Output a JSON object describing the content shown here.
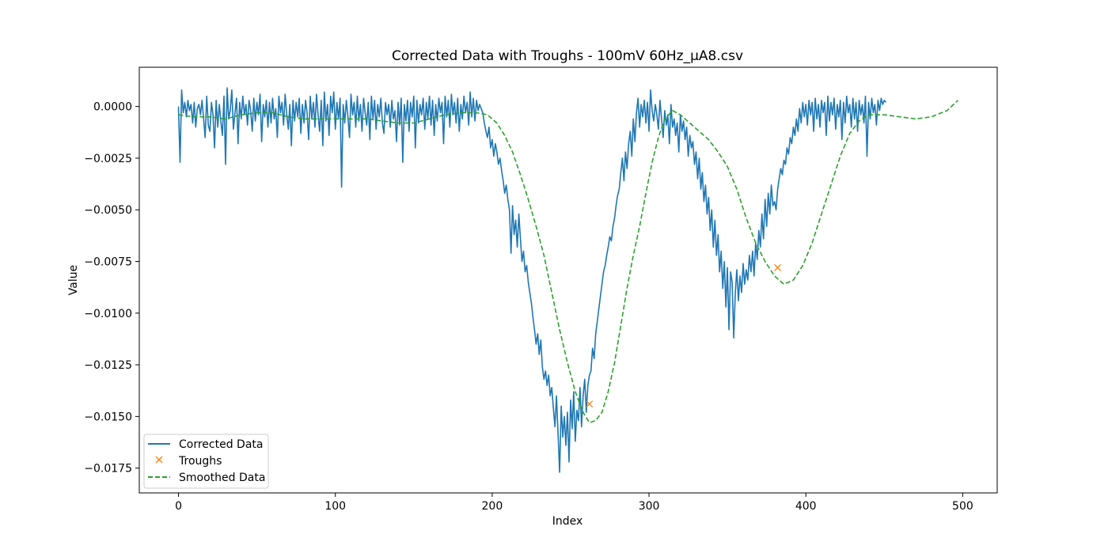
{
  "chart_data": {
    "type": "line",
    "title": "Corrected Data with Troughs - 100mV 60Hz_μA8.csv",
    "xlabel": "Index",
    "ylabel": "Value",
    "xlim": [
      -25,
      522
    ],
    "ylim": [
      -0.0187,
      0.0019
    ],
    "xticks": [
      0,
      100,
      200,
      300,
      400,
      500
    ],
    "xtick_labels": [
      "0",
      "100",
      "200",
      "300",
      "400",
      "500"
    ],
    "yticks": [
      0.0,
      -0.0025,
      -0.005,
      -0.0075,
      -0.01,
      -0.0125,
      -0.015,
      -0.0175
    ],
    "ytick_labels": [
      "0.0000",
      "−0.0025",
      "−0.0050",
      "−0.0075",
      "−0.0100",
      "−0.0125",
      "−0.0150",
      "−0.0175"
    ],
    "grid": false,
    "legend_position": "lower-left",
    "series": [
      {
        "name": "Corrected Data",
        "style": "line",
        "color": "#1f77b4",
        "x_start": 0,
        "x_step": 1,
        "values": [
          0.0,
          -0.0027,
          0.0008,
          -0.0003,
          0.0002,
          -0.0005,
          0.0003,
          -0.0002,
          0.0001,
          -0.0008,
          0.0002,
          -0.001,
          -0.0001,
          0.0001,
          -0.0004,
          0.0003,
          -0.0006,
          -0.0015,
          0.0005,
          -0.0009,
          -0.0012,
          0.0002,
          -0.0004,
          -0.002,
          0.0003,
          -0.001,
          0.0001,
          -0.0007,
          -0.0014,
          0.0005,
          -0.0028,
          0.0009,
          -0.0006,
          -0.0002,
          0.0008,
          -0.0011,
          -0.0003,
          0.0004,
          -0.0018,
          0.0002,
          -0.0006,
          0.0005,
          -0.0004,
          0.0001,
          -0.0009,
          0.0003,
          -0.0002,
          -0.0012,
          0.0004,
          -0.0007,
          0.0002,
          -0.0004,
          0.0006,
          -0.0017,
          0.0001,
          -0.0005,
          0.0003,
          -0.001,
          0.0002,
          -0.0008,
          0.0004,
          -0.0006,
          -0.0001,
          -0.0015,
          0.0005,
          -0.0003,
          0.0002,
          -0.0009,
          0.0006,
          -0.0004,
          -0.0011,
          0.0001,
          -0.0019,
          0.0003,
          -0.0007,
          0.0002,
          -0.0005,
          0.0004,
          -0.0013,
          0.0001,
          -0.0008,
          0.0003,
          -0.0003,
          -0.0016,
          0.0005,
          -0.0006,
          0.0002,
          -0.001,
          0.0006,
          -0.0004,
          -0.0012,
          0.0003,
          -0.0019,
          0.0007,
          -0.0007,
          0.0001,
          -0.0014,
          0.0005,
          -0.0003,
          0.0007,
          -0.0011,
          0.0002,
          -0.0006,
          0.0004,
          -0.0039,
          0.0001,
          -0.0008,
          0.0003,
          -0.0005,
          -0.0015,
          0.0006,
          -0.0004,
          0.0002,
          -0.001,
          0.0005,
          -0.0007,
          0.0001,
          -0.0012,
          0.0004,
          -0.0003,
          -0.0009,
          0.0002,
          -0.0016,
          0.0005,
          -0.0006,
          0.0003,
          -0.0011,
          0.0001,
          -0.0005,
          0.0004,
          -0.0008,
          -0.0013,
          0.0002,
          -0.0004,
          0.0001,
          -0.001,
          0.0003,
          -0.0006,
          -0.0002,
          -0.0017,
          0.0002,
          -0.0009,
          0.0004,
          -0.0027,
          0.0001,
          -0.0007,
          0.0003,
          -0.0012,
          0.0002,
          -0.0005,
          0.0005,
          -0.002,
          0.0003,
          -0.0008,
          0.0001,
          -0.0004,
          0.0004,
          -0.0011,
          0.0002,
          -0.0006,
          0.0005,
          -0.0009,
          0.0003,
          -0.0014,
          0.0001,
          -0.0007,
          0.0004,
          -0.0003,
          0.0002,
          -0.0018,
          0.0005,
          -0.0005,
          0.0003,
          -0.001,
          0.0006,
          -0.0004,
          0.0002,
          -0.0008,
          0.0004,
          -0.0012,
          0.0001,
          -0.0006,
          0.0005,
          -0.0003,
          0.0002,
          -0.0009,
          0.0007,
          -0.0005,
          0.0004,
          -0.0007,
          0.0003,
          -0.0002,
          0.0001,
          -0.0001,
          -0.0003,
          -0.0008,
          -0.0012,
          -0.0015,
          -0.001,
          -0.002,
          -0.0016,
          -0.0024,
          -0.0018,
          -0.0022,
          -0.0028,
          -0.0025,
          -0.0031,
          -0.0036,
          -0.0042,
          -0.0038,
          -0.0045,
          -0.005,
          -0.0071,
          -0.0048,
          -0.0062,
          -0.0055,
          -0.0068,
          -0.0052,
          -0.0064,
          -0.0075,
          -0.007,
          -0.008,
          -0.0077,
          -0.0085,
          -0.009,
          -0.0095,
          -0.0102,
          -0.0108,
          -0.0115,
          -0.011,
          -0.012,
          -0.0113,
          -0.0126,
          -0.0132,
          -0.0128,
          -0.0135,
          -0.013,
          -0.014,
          -0.0136,
          -0.0146,
          -0.0155,
          -0.014,
          -0.0158,
          -0.0177,
          -0.0145,
          -0.016,
          -0.015,
          -0.0164,
          -0.0148,
          -0.0172,
          -0.0142,
          -0.0156,
          -0.0138,
          -0.0162,
          -0.0147,
          -0.0152,
          -0.0136,
          -0.0155,
          -0.014,
          -0.0132,
          -0.0148,
          -0.0135,
          -0.013,
          -0.0128,
          -0.0117,
          -0.0122,
          -0.011,
          -0.0104,
          -0.0098,
          -0.0092,
          -0.0086,
          -0.008,
          -0.0077,
          -0.0072,
          -0.0068,
          -0.0063,
          -0.0065,
          -0.0058,
          -0.0054,
          -0.0048,
          -0.0043,
          -0.004,
          -0.0032,
          -0.0025,
          -0.0036,
          -0.0022,
          -0.003,
          -0.0018,
          -0.0012,
          -0.0024,
          -0.0006,
          -0.0017,
          -0.0003,
          0.0004,
          -0.001,
          0.0001,
          -0.0005,
          0.0003,
          -0.0008,
          0.0002,
          -0.0012,
          0.0008,
          -0.0002,
          -0.0007,
          0.0001,
          -0.0004,
          -0.0011,
          0.0003,
          -0.0006,
          -0.0015,
          -0.0002,
          -0.0009,
          -0.0004,
          -0.0018,
          0.0001,
          -0.001,
          -0.0006,
          -0.0014,
          -0.0008,
          -0.0022,
          -0.0004,
          -0.0012,
          -0.0007,
          -0.0016,
          -0.001,
          -0.0024,
          -0.0014,
          -0.002,
          -0.0017,
          -0.0028,
          -0.0022,
          -0.0035,
          -0.0025,
          -0.004,
          -0.0032,
          -0.0046,
          -0.0038,
          -0.0052,
          -0.0044,
          -0.006,
          -0.005,
          -0.0068,
          -0.0055,
          -0.0072,
          -0.0062,
          -0.008,
          -0.007,
          -0.0088,
          -0.0075,
          -0.0097,
          -0.0078,
          -0.0108,
          -0.008,
          -0.0085,
          -0.0112,
          -0.009,
          -0.0079,
          -0.0094,
          -0.0082,
          -0.009,
          -0.0076,
          -0.0086,
          -0.0079,
          -0.0084,
          -0.0072,
          -0.008,
          -0.007,
          -0.0082,
          -0.0066,
          -0.0074,
          -0.006,
          -0.0068,
          -0.0052,
          -0.0064,
          -0.0045,
          -0.0058,
          -0.0042,
          -0.0052,
          -0.0038,
          -0.0048,
          -0.0046,
          -0.005,
          -0.004,
          -0.0035,
          -0.003,
          -0.0033,
          -0.0026,
          -0.0028,
          -0.002,
          -0.0023,
          -0.0015,
          -0.0018,
          -0.001,
          -0.0014,
          -0.0006,
          -0.0012,
          -0.0001,
          -0.0008,
          0.0002,
          -0.0005,
          0.0001,
          -0.0009,
          0.0003,
          -0.0004,
          0.0002,
          -0.0012,
          0.0004,
          -0.0006,
          0.0001,
          -0.001,
          0.0003,
          -0.0003,
          0.0002,
          -0.0014,
          0.0005,
          -0.0007,
          0.0002,
          -0.0004,
          0.0004,
          -0.0011,
          0.0001,
          -0.0005,
          0.0003,
          -0.0016,
          0.0002,
          -0.0008,
          0.0005,
          -0.0003,
          0.0001,
          -0.001,
          0.0004,
          -0.0006,
          0.0002,
          -0.0012,
          0.0003,
          -0.0004,
          0.0001,
          -0.0008,
          0.0005,
          -0.0024,
          0.0002,
          -0.0006,
          0.0004,
          -0.0003,
          0.0001,
          -0.0009,
          0.0003,
          -0.0002,
          0.0004,
          0.0001,
          0.0003,
          0.0002
        ]
      },
      {
        "name": "Troughs",
        "style": "marker",
        "color": "#ff7f0e",
        "points": [
          {
            "x": 262,
            "y": -0.0144
          },
          {
            "x": 382,
            "y": -0.0078
          }
        ]
      },
      {
        "name": "Smoothed Data",
        "style": "dashed",
        "color": "#2ca02c",
        "points": [
          {
            "x": 0,
            "y": -0.0004
          },
          {
            "x": 10,
            "y": -0.0005
          },
          {
            "x": 20,
            "y": -0.0005
          },
          {
            "x": 30,
            "y": -0.0006
          },
          {
            "x": 40,
            "y": -0.0004
          },
          {
            "x": 50,
            "y": -0.0003
          },
          {
            "x": 60,
            "y": -0.0003
          },
          {
            "x": 70,
            "y": -0.0005
          },
          {
            "x": 80,
            "y": -0.0006
          },
          {
            "x": 90,
            "y": -0.0006
          },
          {
            "x": 100,
            "y": -0.0006
          },
          {
            "x": 110,
            "y": -0.0006
          },
          {
            "x": 120,
            "y": -0.0006
          },
          {
            "x": 130,
            "y": -0.0007
          },
          {
            "x": 140,
            "y": -0.0008
          },
          {
            "x": 150,
            "y": -0.0008
          },
          {
            "x": 160,
            "y": -0.0006
          },
          {
            "x": 170,
            "y": -0.0004
          },
          {
            "x": 180,
            "y": -0.0003
          },
          {
            "x": 190,
            "y": -0.0003
          },
          {
            "x": 197,
            "y": -0.0004
          },
          {
            "x": 203,
            "y": -0.0008
          },
          {
            "x": 208,
            "y": -0.0014
          },
          {
            "x": 213,
            "y": -0.0022
          },
          {
            "x": 218,
            "y": -0.0033
          },
          {
            "x": 223,
            "y": -0.0045
          },
          {
            "x": 228,
            "y": -0.0058
          },
          {
            "x": 233,
            "y": -0.0072
          },
          {
            "x": 238,
            "y": -0.009
          },
          {
            "x": 243,
            "y": -0.0108
          },
          {
            "x": 248,
            "y": -0.0124
          },
          {
            "x": 253,
            "y": -0.0138
          },
          {
            "x": 258,
            "y": -0.0148
          },
          {
            "x": 262,
            "y": -0.0153
          },
          {
            "x": 266,
            "y": -0.0152
          },
          {
            "x": 270,
            "y": -0.0148
          },
          {
            "x": 274,
            "y": -0.0138
          },
          {
            "x": 278,
            "y": -0.0124
          },
          {
            "x": 282,
            "y": -0.0106
          },
          {
            "x": 286,
            "y": -0.0088
          },
          {
            "x": 290,
            "y": -0.0072
          },
          {
            "x": 294,
            "y": -0.0058
          },
          {
            "x": 298,
            "y": -0.0042
          },
          {
            "x": 302,
            "y": -0.0027
          },
          {
            "x": 306,
            "y": -0.0015
          },
          {
            "x": 310,
            "y": -0.0006
          },
          {
            "x": 315,
            "y": -0.0002
          },
          {
            "x": 320,
            "y": -0.0004
          },
          {
            "x": 326,
            "y": -0.0008
          },
          {
            "x": 332,
            "y": -0.0012
          },
          {
            "x": 338,
            "y": -0.0016
          },
          {
            "x": 344,
            "y": -0.0022
          },
          {
            "x": 350,
            "y": -0.0029
          },
          {
            "x": 356,
            "y": -0.004
          },
          {
            "x": 362,
            "y": -0.0054
          },
          {
            "x": 368,
            "y": -0.0066
          },
          {
            "x": 374,
            "y": -0.0075
          },
          {
            "x": 380,
            "y": -0.0082
          },
          {
            "x": 386,
            "y": -0.0086
          },
          {
            "x": 392,
            "y": -0.0084
          },
          {
            "x": 398,
            "y": -0.0077
          },
          {
            "x": 404,
            "y": -0.0066
          },
          {
            "x": 410,
            "y": -0.0052
          },
          {
            "x": 416,
            "y": -0.0038
          },
          {
            "x": 422,
            "y": -0.0024
          },
          {
            "x": 428,
            "y": -0.0013
          },
          {
            "x": 434,
            "y": -0.0007
          },
          {
            "x": 440,
            "y": -0.0004
          },
          {
            "x": 450,
            "y": -0.0004
          },
          {
            "x": 460,
            "y": -0.0005
          },
          {
            "x": 470,
            "y": -0.0006
          },
          {
            "x": 480,
            "y": -0.0005
          },
          {
            "x": 490,
            "y": -0.0002
          },
          {
            "x": 497,
            "y": 0.0003
          }
        ]
      }
    ]
  }
}
